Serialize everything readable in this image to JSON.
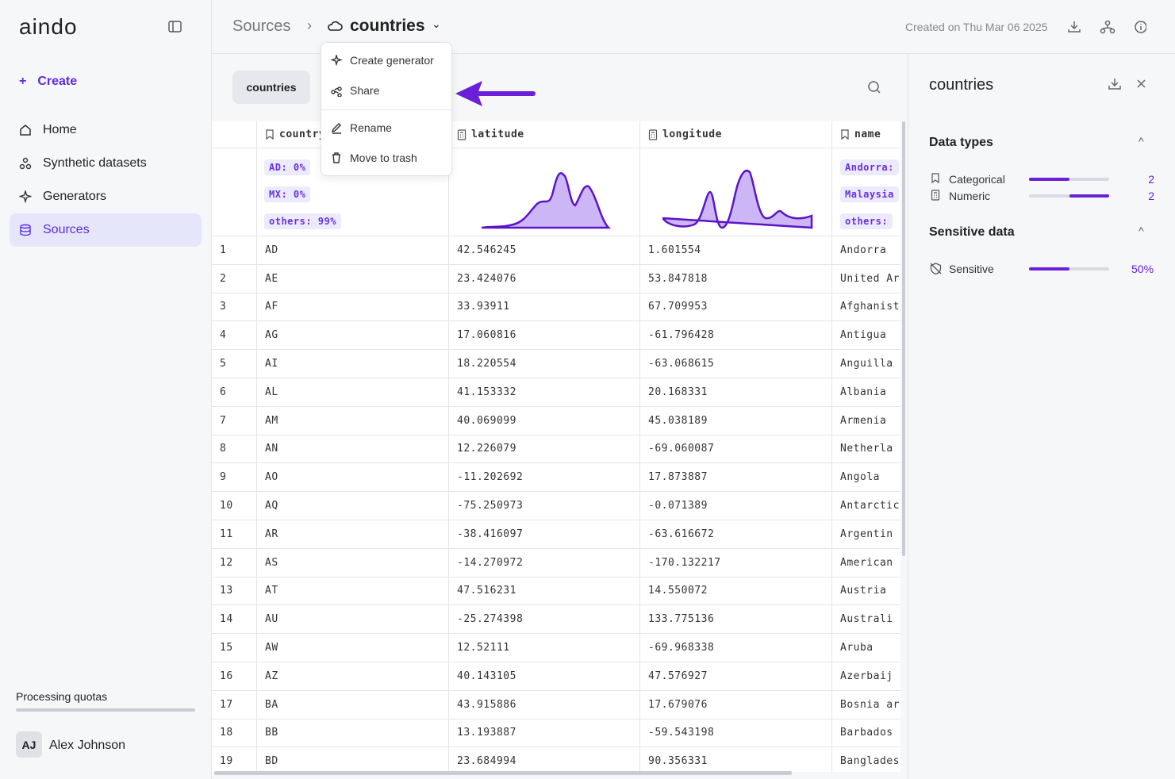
{
  "sidebar": {
    "logo": "aindo",
    "create": "Create",
    "nav": [
      "Home",
      "Synthetic datasets",
      "Generators",
      "Sources"
    ],
    "quotas": "Processing quotas",
    "user": {
      "initials": "AJ",
      "name": "Alex Johnson"
    }
  },
  "header": {
    "breadcrumb": "Sources",
    "title": "countries",
    "created": "Created on Thu Mar 06 2025"
  },
  "menu": [
    "Create generator",
    "Share",
    "Rename",
    "Move to trash"
  ],
  "tab": "countries",
  "table": {
    "columns": [
      "country",
      "latitude",
      "longitude",
      "name"
    ],
    "country_stats": [
      "AD: 0%",
      "MX: 0%",
      "others: 99%"
    ],
    "name_stats": [
      "Andorra:",
      "Malaysia",
      "others:"
    ],
    "rows": [
      [
        "1",
        "AD",
        "42.546245",
        "1.601554",
        "Andorra"
      ],
      [
        "2",
        "AE",
        "23.424076",
        "53.847818",
        "United Ar"
      ],
      [
        "3",
        "AF",
        "33.93911",
        "67.709953",
        "Afghanist"
      ],
      [
        "4",
        "AG",
        "17.060816",
        "-61.796428",
        "Antigua"
      ],
      [
        "5",
        "AI",
        "18.220554",
        "-63.068615",
        "Anguilla"
      ],
      [
        "6",
        "AL",
        "41.153332",
        "20.168331",
        "Albania"
      ],
      [
        "7",
        "AM",
        "40.069099",
        "45.038189",
        "Armenia"
      ],
      [
        "8",
        "AN",
        "12.226079",
        "-69.060087",
        "Netherla"
      ],
      [
        "9",
        "AO",
        "-11.202692",
        "17.873887",
        "Angola"
      ],
      [
        "10",
        "AQ",
        "-75.250973",
        "-0.071389",
        "Antarctic"
      ],
      [
        "11",
        "AR",
        "-38.416097",
        "-63.616672",
        "Argentin"
      ],
      [
        "12",
        "AS",
        "-14.270972",
        "-170.132217",
        "American"
      ],
      [
        "13",
        "AT",
        "47.516231",
        "14.550072",
        "Austria"
      ],
      [
        "14",
        "AU",
        "-25.274398",
        "133.775136",
        "Australi"
      ],
      [
        "15",
        "AW",
        "12.52111",
        "-69.968338",
        "Aruba"
      ],
      [
        "16",
        "AZ",
        "40.143105",
        "47.576927",
        "Azerbaij"
      ],
      [
        "17",
        "BA",
        "43.915886",
        "17.679076",
        "Bosnia ar"
      ],
      [
        "18",
        "BB",
        "13.193887",
        "-59.543198",
        "Barbados"
      ],
      [
        "19",
        "BD",
        "23.684994",
        "90.356331",
        "Banglades"
      ]
    ]
  },
  "panel": {
    "title": "countries",
    "types_heading": "Data types",
    "types": [
      {
        "label": "Categorical",
        "count": 2
      },
      {
        "label": "Numeric",
        "count": 2
      }
    ],
    "sensitive_heading": "Sensitive data",
    "sensitive_label": "Sensitive",
    "sensitive_value": "50%"
  }
}
